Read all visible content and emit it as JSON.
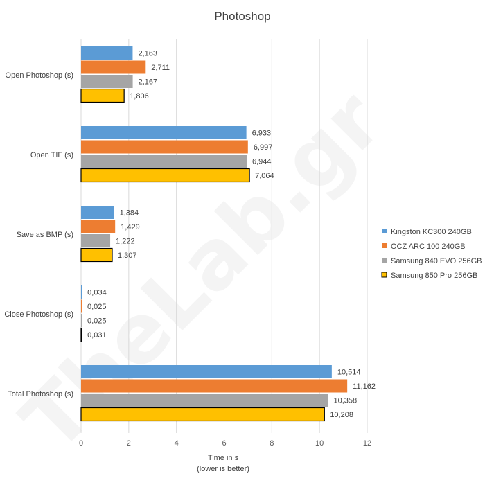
{
  "watermark": "TheLab.gr",
  "chart_data": {
    "type": "bar",
    "orientation": "horizontal",
    "title": "Photoshop",
    "xlabel": "Time in s",
    "xlabel_note": "(lower is better)",
    "ylabel": "",
    "xlim": [
      0,
      12
    ],
    "xticks": [
      0,
      2,
      4,
      6,
      8,
      10,
      12
    ],
    "grid": true,
    "legend_position": "right",
    "decimal_separator": ",",
    "categories": [
      "Open Photoshop (s)",
      "Open TIF (s)",
      "Save as BMP (s)",
      "Close Photoshop (s)",
      "Total Photoshop (s)"
    ],
    "series": [
      {
        "name": "Kingston KC300 240GB",
        "color": "#5b9bd5",
        "values": [
          2.163,
          6.933,
          1.384,
          0.034,
          10.514
        ]
      },
      {
        "name": "OCZ ARC 100 240GB",
        "color": "#ed7d31",
        "values": [
          2.711,
          6.997,
          1.429,
          0.025,
          11.162
        ]
      },
      {
        "name": "Samsung 840 EVO 256GB",
        "color": "#a5a5a5",
        "values": [
          2.167,
          6.944,
          1.222,
          0.025,
          10.358
        ]
      },
      {
        "name": "Samsung 850 Pro 256GB",
        "color": "#ffc000",
        "outline": "#000000",
        "values": [
          1.806,
          7.064,
          1.307,
          0.031,
          10.208
        ]
      }
    ]
  }
}
